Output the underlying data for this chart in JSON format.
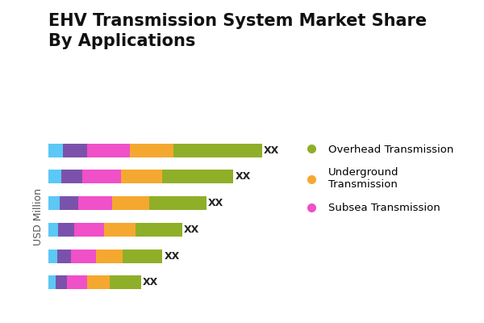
{
  "title": "EHV Transmission System Market Share\nBy Applications",
  "ylabel": "USD Million",
  "end_label": "XX",
  "colors": {
    "cyan": "#5BC8F5",
    "purple": "#7B52AB",
    "magenta": "#F050C8",
    "orange": "#F5A830",
    "olive": "#8FAF28"
  },
  "segments": [
    [
      0.5,
      0.85,
      1.5,
      1.55,
      3.1
    ],
    [
      0.45,
      0.75,
      1.35,
      1.45,
      2.5
    ],
    [
      0.4,
      0.65,
      1.2,
      1.3,
      2.0
    ],
    [
      0.35,
      0.55,
      1.05,
      1.1,
      1.65
    ],
    [
      0.3,
      0.48,
      0.88,
      0.94,
      1.4
    ],
    [
      0.25,
      0.4,
      0.72,
      0.78,
      1.1
    ]
  ],
  "legend_items": [
    {
      "label": "Overhead Transmission",
      "color": "#8FAF28"
    },
    {
      "label": "Underground\nTransmission",
      "color": "#F5A830"
    },
    {
      "label": "Subsea Transmission",
      "color": "#F050C8"
    }
  ],
  "background_color": "#FFFFFF",
  "title_fontsize": 15,
  "legend_fontsize": 9.5,
  "ylabel_fontsize": 9
}
